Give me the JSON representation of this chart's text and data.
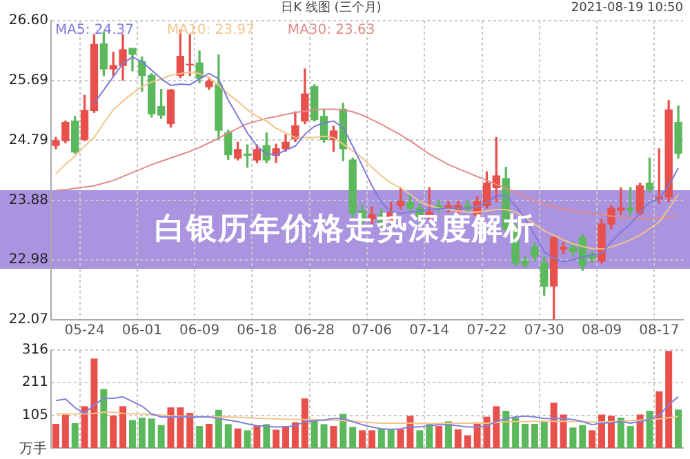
{
  "chart_data": [
    {
      "type": "candlestick",
      "title": "白银历年价格走势深度解析",
      "subtitle": "日K 线图 (三个月)",
      "annotations": [
        "2021-08-19 10:50"
      ],
      "categories": [
        null,
        null,
        null,
        "05-24",
        null,
        null,
        null,
        null,
        null,
        "06-01",
        null,
        null,
        null,
        null,
        null,
        "06-09",
        null,
        null,
        null,
        null,
        null,
        "06-18",
        null,
        null,
        null,
        null,
        null,
        "06-28",
        null,
        null,
        null,
        null,
        null,
        "07-06",
        null,
        null,
        null,
        null,
        null,
        "07-14",
        null,
        null,
        null,
        null,
        null,
        "07-22",
        null,
        null,
        null,
        null,
        null,
        "07-30",
        null,
        null,
        null,
        null,
        null,
        "08-09",
        null,
        null,
        null,
        null,
        null,
        "08-17",
        null,
        null
      ],
      "ohlc": [
        [
          24.71,
          24.83,
          24.66,
          24.78
        ],
        [
          24.78,
          25.08,
          24.75,
          25.06
        ],
        [
          25.08,
          25.15,
          24.59,
          24.61
        ],
        [
          24.8,
          25.47,
          24.78,
          25.24
        ],
        [
          25.24,
          26.39,
          25.21,
          26.24
        ],
        [
          26.25,
          26.43,
          25.77,
          25.87
        ],
        [
          25.87,
          26.12,
          25.77,
          25.92
        ],
        [
          25.92,
          26.39,
          25.7,
          26.16
        ],
        [
          26.18,
          26.18,
          25.84,
          26.09
        ],
        [
          25.98,
          26.05,
          25.53,
          25.77
        ],
        [
          25.77,
          25.8,
          25.14,
          25.19
        ],
        [
          25.3,
          25.56,
          25.12,
          25.17
        ],
        [
          25.04,
          25.56,
          24.99,
          25.55
        ],
        [
          25.77,
          26.46,
          25.74,
          26.06
        ],
        [
          25.93,
          26.39,
          25.77,
          25.94
        ],
        [
          25.96,
          26.14,
          25.66,
          25.73
        ],
        [
          25.6,
          25.74,
          25.56,
          25.68
        ],
        [
          25.63,
          26.08,
          24.8,
          24.94
        ],
        [
          24.9,
          24.94,
          24.5,
          24.57
        ],
        [
          24.52,
          24.76,
          24.49,
          24.65
        ],
        [
          24.58,
          24.72,
          24.38,
          24.56
        ],
        [
          24.49,
          24.72,
          24.45,
          24.65
        ],
        [
          24.71,
          24.9,
          24.45,
          24.49
        ],
        [
          24.56,
          24.73,
          24.45,
          24.66
        ],
        [
          24.66,
          24.87,
          24.62,
          24.76
        ],
        [
          24.81,
          25.22,
          24.77,
          25.01
        ],
        [
          25.08,
          25.87,
          25.04,
          25.49
        ],
        [
          25.6,
          25.63,
          25.08,
          25.1
        ],
        [
          25.15,
          25.25,
          24.76,
          24.8
        ],
        [
          24.8,
          25,
          24.62,
          24.93
        ],
        [
          25.26,
          25.35,
          24.48,
          24.66
        ],
        [
          24.49,
          24.52,
          23.62,
          23.69
        ],
        [
          23.72,
          23.8,
          23.5,
          23.6
        ],
        [
          23.6,
          23.78,
          23.52,
          23.66
        ],
        [
          23.66,
          23.75,
          23.45,
          23.55
        ],
        [
          23.55,
          23.85,
          23.5,
          23.7
        ],
        [
          23.8,
          24.07,
          23.75,
          23.86
        ],
        [
          23.85,
          23.95,
          23.7,
          23.76
        ],
        [
          23.76,
          23.82,
          23.55,
          23.62
        ],
        [
          23.62,
          24.07,
          23.58,
          23.7
        ],
        [
          23.8,
          23.88,
          23.7,
          23.76
        ],
        [
          23.76,
          23.86,
          23.7,
          23.8
        ],
        [
          23.73,
          23.86,
          23.68,
          23.8
        ],
        [
          23.8,
          23.88,
          23.7,
          23.75
        ],
        [
          23.66,
          23.93,
          23.62,
          23.86
        ],
        [
          23.8,
          24.31,
          23.76,
          24.14
        ],
        [
          24.07,
          24.83,
          23.86,
          24.25
        ],
        [
          24.21,
          24.38,
          23.4,
          23.45
        ],
        [
          23.45,
          23.52,
          22.89,
          22.93
        ],
        [
          22.96,
          23.03,
          22.86,
          22.9
        ],
        [
          23.17,
          23.24,
          22.96,
          23.03
        ],
        [
          22.93,
          23.03,
          22.44,
          22.58
        ],
        [
          22.58,
          23.33,
          22.08,
          23.31
        ],
        [
          23.14,
          23.24,
          23.07,
          23.17
        ],
        [
          23.17,
          23.24,
          23.03,
          23.1
        ],
        [
          23.31,
          23.36,
          22.82,
          22.89
        ],
        [
          23.07,
          23.1,
          22.93,
          23
        ],
        [
          22.96,
          23.59,
          22.93,
          23.52
        ],
        [
          23.52,
          23.8,
          23.45,
          23.76
        ],
        [
          23.73,
          24.07,
          23.66,
          23.76
        ],
        [
          23.76,
          24.07,
          23.66,
          23.73
        ],
        [
          23.69,
          24.14,
          23.66,
          24.1
        ],
        [
          24.14,
          24.52,
          24,
          24.04
        ],
        [
          23.9,
          24.66,
          23.83,
          23.93
        ],
        [
          23.93,
          25.39,
          23.86,
          25.25
        ],
        [
          25.06,
          25.31,
          24.52,
          24.59
        ]
      ],
      "colors": [
        "#e8504c",
        "#e8504c",
        "#5cb85c",
        "#e8504c",
        "#e8504c",
        "#5cb85c",
        "#e8504c",
        "#e8504c",
        "#5cb85c",
        "#5cb85c",
        "#5cb85c",
        "#5cb85c",
        "#e8504c",
        "#e8504c",
        "#e8504c",
        "#5cb85c",
        "#e8504c",
        "#5cb85c",
        "#5cb85c",
        "#e8504c",
        "#5cb85c",
        "#e8504c",
        "#5cb85c",
        "#e8504c",
        "#e8504c",
        "#e8504c",
        "#e8504c",
        "#5cb85c",
        "#5cb85c",
        "#e8504c",
        "#5cb85c",
        "#5cb85c",
        "#5cb85c",
        "#e8504c",
        "#5cb85c",
        "#e8504c",
        "#e8504c",
        "#5cb85c",
        "#5cb85c",
        "#e8504c",
        "#5cb85c",
        "#e8504c",
        "#e8504c",
        "#5cb85c",
        "#e8504c",
        "#e8504c",
        "#e8504c",
        "#5cb85c",
        "#5cb85c",
        "#5cb85c",
        "#5cb85c",
        "#5cb85c",
        "#e8504c",
        "#e8504c",
        "#5cb85c",
        "#5cb85c",
        "#5cb85c",
        "#e8504c",
        "#e8504c",
        "#e8504c",
        "#5cb85c",
        "#e8504c",
        "#5cb85c",
        "#e8504c",
        "#e8504c",
        "#5cb85c"
      ],
      "series": [
        {
          "type": "line",
          "name": "MA5: 24.37",
          "color": "#7b7bdc",
          "values": [
            null,
            null,
            null,
            null,
            25.35,
            25.55,
            25.75,
            25.95,
            26.05,
            25.98,
            25.85,
            25.72,
            25.62,
            25.64,
            25.63,
            25.72,
            25.8,
            25.72,
            25.4,
            25.15,
            24.9,
            24.7,
            24.58,
            24.57,
            24.64,
            24.7,
            24.88,
            25,
            25.05,
            25.08,
            24.98,
            24.7,
            24.4,
            24.1,
            23.85,
            23.7,
            23.68,
            23.7,
            23.72,
            23.74,
            23.75,
            23.76,
            23.76,
            23.76,
            23.78,
            23.85,
            23.95,
            23.95,
            23.8,
            23.6,
            23.35,
            23.1,
            23,
            22.95,
            22.98,
            23.02,
            23.05,
            23.08,
            23.25,
            23.4,
            23.52,
            23.7,
            23.85,
            23.9,
            24.1,
            24.37
          ]
        },
        {
          "type": "line",
          "name": "MA10: 23.97",
          "color": "#f2c58a",
          "values": [
            24.28,
            24.42,
            24.55,
            24.7,
            24.83,
            25.05,
            25.25,
            25.38,
            25.5,
            25.6,
            25.67,
            25.72,
            25.77,
            25.8,
            25.82,
            25.8,
            25.73,
            25.62,
            25.49,
            25.38,
            25.25,
            25.15,
            25.08,
            24.97,
            24.9,
            24.83,
            24.83,
            24.83,
            24.85,
            24.83,
            24.73,
            24.63,
            24.52,
            24.38,
            24.25,
            24.14,
            24.07,
            23.97,
            23.86,
            23.8,
            23.76,
            23.74,
            23.72,
            23.7,
            23.7,
            23.72,
            23.74,
            23.74,
            23.7,
            23.62,
            23.52,
            23.42,
            23.35,
            23.28,
            23.22,
            23.18,
            23.15,
            23.14,
            23.17,
            23.22,
            23.28,
            23.35,
            23.45,
            23.55,
            23.75,
            23.97
          ]
        },
        {
          "type": "line",
          "name": "MA30: 23.63",
          "color": "#e48a8a",
          "values": [
            24.03,
            24.04,
            24.06,
            24.08,
            24.1,
            24.14,
            24.18,
            24.24,
            24.3,
            24.36,
            24.42,
            24.47,
            24.52,
            24.57,
            24.62,
            24.68,
            24.75,
            24.82,
            24.9,
            24.97,
            25.04,
            25.08,
            25.12,
            25.15,
            25.18,
            25.21,
            25.23,
            25.25,
            25.26,
            25.26,
            25.25,
            25.22,
            25.17,
            25.1,
            25.03,
            24.95,
            24.87,
            24.78,
            24.68,
            24.58,
            24.5,
            24.42,
            24.36,
            24.3,
            24.24,
            24.18,
            24.12,
            24.06,
            24,
            23.94,
            23.88,
            23.82,
            23.78,
            23.75,
            23.72,
            23.7,
            23.68,
            23.66,
            23.64,
            23.62,
            23.61,
            23.6,
            23.6,
            23.61,
            23.63,
            23.65
          ]
        }
      ],
      "ylim": [
        22.07,
        26.6
      ],
      "yticks": [
        22.07,
        22.98,
        23.88,
        24.79,
        25.69,
        {
          "value": 26.6,
          "label": "26.60"
        }
      ],
      "grid": true,
      "legend": "top left",
      "marker": "none"
    },
    {
      "type": "bar",
      "ylabel": "万手",
      "tick_labels": "y",
      "categories": [
        null,
        null,
        null,
        null,
        null,
        null,
        null,
        null,
        null,
        null,
        null,
        null,
        null,
        null,
        null,
        null,
        null,
        null,
        null,
        null,
        null,
        null,
        null,
        null,
        null,
        null,
        null,
        null,
        null,
        null,
        null,
        null,
        null,
        null,
        null,
        null,
        null,
        null,
        null,
        null,
        null,
        null,
        null,
        null,
        null,
        null,
        null,
        null,
        null,
        null,
        null,
        null,
        null,
        null,
        null,
        null,
        null,
        null,
        null,
        null,
        null,
        null,
        null,
        null,
        null,
        null
      ],
      "series": [
        {
          "type": "bar",
          "values": [
            78,
            108,
            80,
            135,
            289,
            190,
            105,
            135,
            90,
            98,
            95,
            74,
            131,
            131,
            113,
            71,
            78,
            123,
            77,
            63,
            57,
            71,
            77,
            59,
            71,
            83,
            160,
            90,
            77,
            71,
            110,
            68,
            57,
            57,
            63,
            60,
            60,
            104,
            57,
            78,
            71,
            86,
            60,
            41,
            83,
            101,
            135,
            120,
            98,
            78,
            78,
            86,
            146,
            108,
            66,
            74,
            57,
            108,
            104,
            98,
            71,
            108,
            120,
            183,
            313,
            124
          ],
          "colors": [
            "#e8504c",
            "#e8504c",
            "#5cb85c",
            "#e8504c",
            "#e8504c",
            "#5cb85c",
            "#e8504c",
            "#e8504c",
            "#5cb85c",
            "#5cb85c",
            "#5cb85c",
            "#5cb85c",
            "#e8504c",
            "#e8504c",
            "#e8504c",
            "#5cb85c",
            "#e8504c",
            "#5cb85c",
            "#5cb85c",
            "#e8504c",
            "#5cb85c",
            "#e8504c",
            "#5cb85c",
            "#e8504c",
            "#e8504c",
            "#e8504c",
            "#e8504c",
            "#5cb85c",
            "#5cb85c",
            "#e8504c",
            "#5cb85c",
            "#5cb85c",
            "#e8504c",
            "#e8504c",
            "#5cb85c",
            "#5cb85c",
            "#e8504c",
            "#e8504c",
            "#5cb85c",
            "#5cb85c",
            "#e8504c",
            "#5cb85c",
            "#e8504c",
            "#e8504c",
            "#e8504c",
            "#e8504c",
            "#e8504c",
            "#5cb85c",
            "#5cb85c",
            "#5cb85c",
            "#5cb85c",
            "#5cb85c",
            "#e8504c",
            "#e8504c",
            "#5cb85c",
            "#5cb85c",
            "#e8504c",
            "#e8504c",
            "#e8504c",
            "#5cb85c",
            "#5cb85c",
            "#e8504c",
            "#5cb85c",
            "#e8504c",
            "#e8504c",
            "#5cb85c"
          ]
        },
        {
          "type": "line",
          "color": "#8080e0",
          "values": [
            153,
            158,
            130,
            112,
            140,
            160,
            160,
            165,
            150,
            135,
            110,
            100,
            100,
            100,
            100,
            100,
            100,
            95,
            90,
            85,
            78,
            72,
            70,
            68,
            68,
            72,
            85,
            88,
            90,
            95,
            95,
            85,
            75,
            68,
            62,
            60,
            62,
            68,
            68,
            72,
            75,
            75,
            72,
            68,
            68,
            72,
            85,
            95,
            100,
            103,
            100,
            95,
            95,
            95,
            92,
            85,
            75,
            80,
            82,
            85,
            80,
            85,
            92,
            105,
            140,
            165
          ]
        },
        {
          "type": "line",
          "color": "#f2c58a",
          "values": [
            110,
            110,
            110,
            110,
            112,
            115,
            115,
            112,
            110,
            110,
            108,
            106,
            104,
            103,
            102,
            101,
            100,
            100,
            100,
            99,
            98,
            96,
            95,
            94,
            93,
            92,
            92,
            91,
            90,
            90,
            88,
            86,
            84,
            82,
            80,
            80,
            80,
            80,
            79,
            79,
            79,
            80,
            80,
            80,
            80,
            80,
            82,
            84,
            85,
            85,
            86,
            86,
            86,
            86,
            85,
            85,
            84,
            84,
            85,
            86,
            88,
            90,
            92,
            94,
            98,
            102
          ]
        }
      ],
      "ylim": [
        0,
        316
      ],
      "yticks": [
        105,
        211,
        316
      ],
      "grid": true,
      "marker": "none"
    }
  ]
}
